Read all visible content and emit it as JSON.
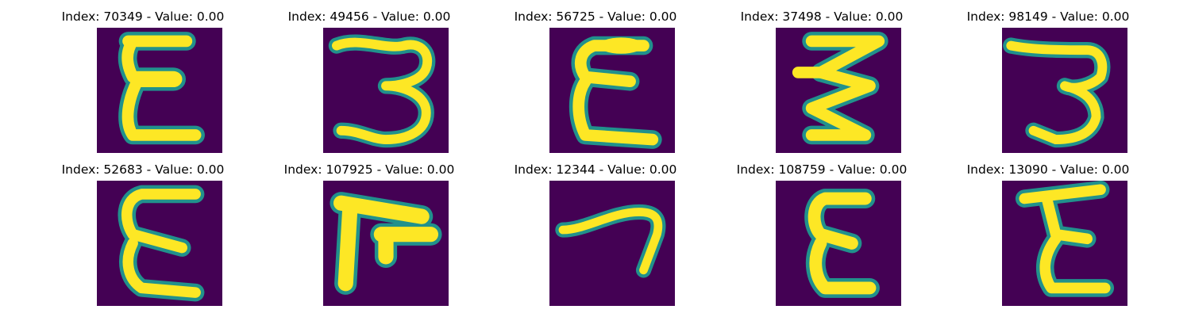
{
  "figure": {
    "colormap": "viridis",
    "background_color": "#440154",
    "stroke_color": "#fde725",
    "panels": [
      {
        "title": "Index: 70349 - Value: 0.00"
      },
      {
        "title": "Index: 49456 - Value: 0.00"
      },
      {
        "title": "Index: 56725 - Value: 0.00"
      },
      {
        "title": "Index: 37498 - Value: 0.00"
      },
      {
        "title": "Index: 98149 - Value: 0.00"
      },
      {
        "title": "Index: 52683 - Value: 0.00"
      },
      {
        "title": "Index: 107925 - Value: 0.00"
      },
      {
        "title": "Index: 12344 - Value: 0.00"
      },
      {
        "title": "Index: 108759 - Value: 0.00"
      },
      {
        "title": "Index: 13090 - Value: 0.00"
      }
    ]
  }
}
